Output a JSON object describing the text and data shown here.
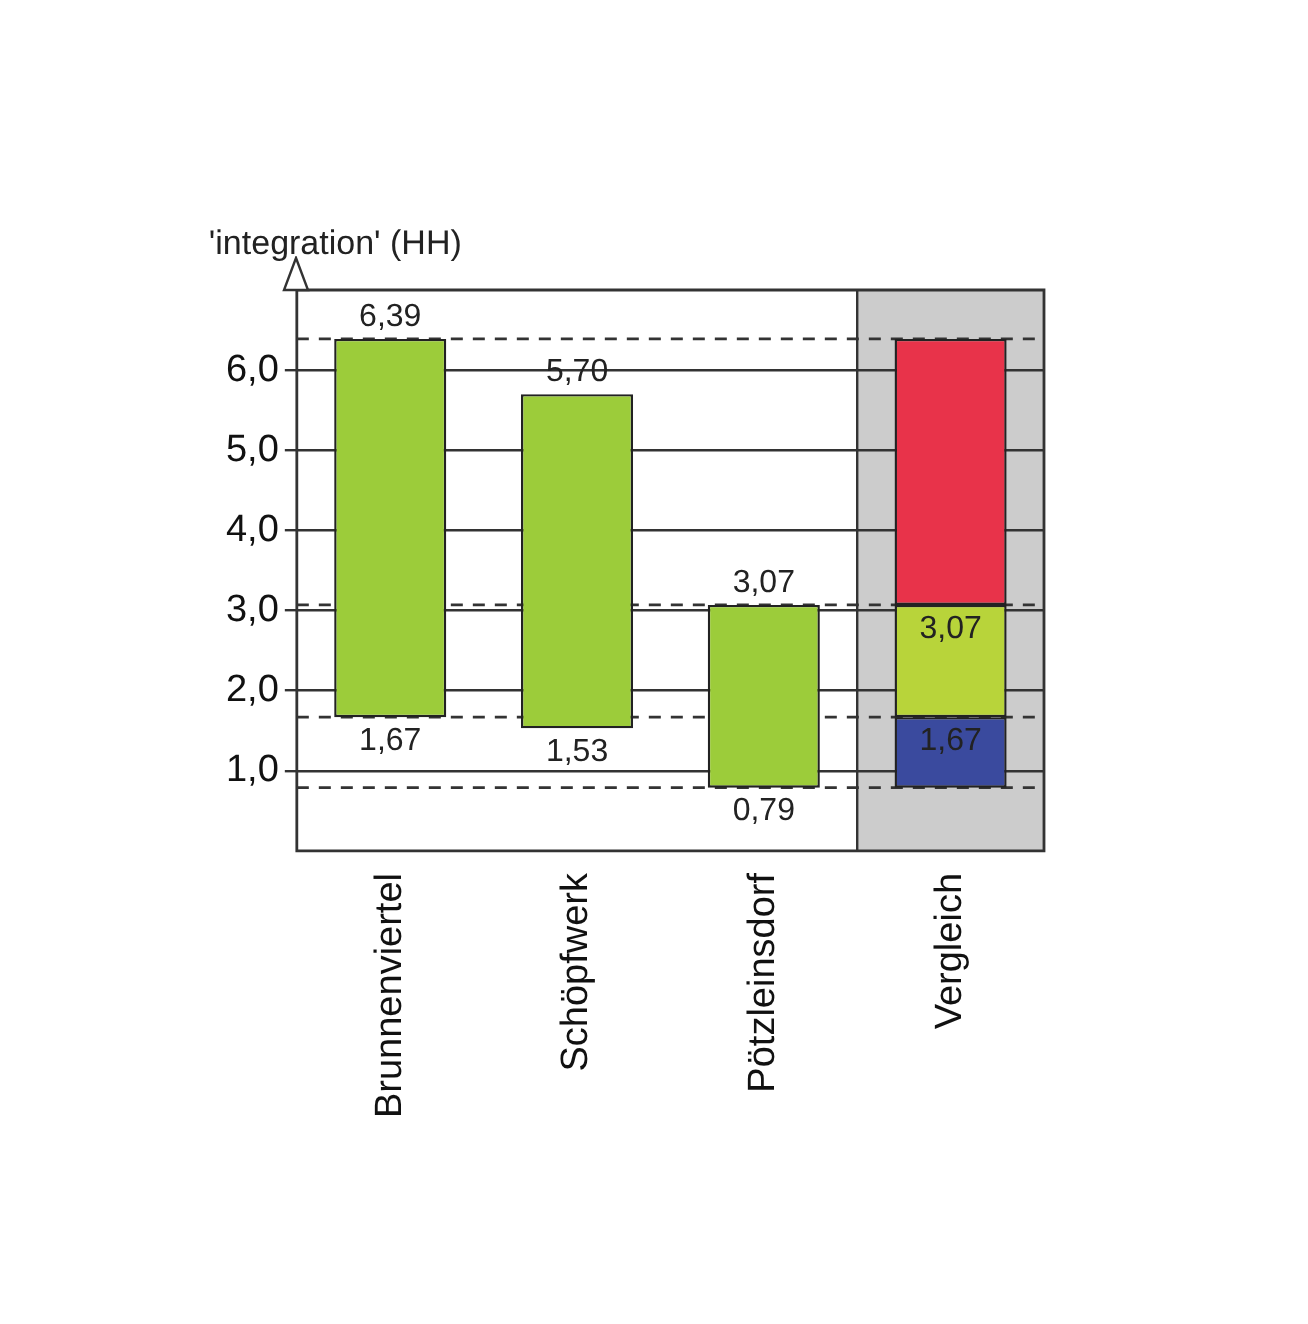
{
  "chart_data": {
    "type": "bar",
    "ylabel": "'integration' (HH)",
    "categories": [
      "Brunnenviertel",
      "Schöpfwerk",
      "Pötzleinsdorf",
      "Vergleich"
    ],
    "series": [
      {
        "color": "#9ccc3a",
        "base": [
          1.67,
          1.53,
          0.79,
          null
        ],
        "values": [
          4.72,
          4.17,
          2.28,
          null
        ]
      },
      {
        "color": "#3a4a9e",
        "base": [
          null,
          null,
          null,
          0.79
        ],
        "values": [
          null,
          null,
          null,
          0.88
        ]
      },
      {
        "color": "#b8d43a",
        "base": [
          null,
          null,
          null,
          1.67
        ],
        "values": [
          null,
          null,
          null,
          1.4
        ]
      },
      {
        "color": "#e8334a",
        "base": [
          null,
          null,
          null,
          3.07
        ],
        "values": [
          null,
          null,
          null,
          3.32
        ]
      }
    ],
    "ylim": [
      0,
      7
    ],
    "yticks": [
      {
        "value": 1,
        "label": "1,0"
      },
      {
        "value": 2,
        "label": "2,0"
      },
      {
        "value": 3,
        "label": "3,0"
      },
      {
        "value": 4,
        "label": "4,0"
      },
      {
        "value": 5,
        "label": "5,0"
      },
      {
        "value": 6,
        "label": "6,0"
      }
    ],
    "grid": "y",
    "legend": false,
    "ref_lines": [
      {
        "axis": "y",
        "value": 6.39,
        "line_style": "dashed"
      },
      {
        "axis": "y",
        "value": 3.07,
        "line_style": "dashed"
      },
      {
        "axis": "y",
        "value": 1.67,
        "line_style": "dashed"
      },
      {
        "axis": "y",
        "value": 0.79,
        "line_style": "dashed"
      }
    ],
    "bands": [
      {
        "axis": "x",
        "from": "Vergleich",
        "to": "Vergleich",
        "color": "#cccccc"
      }
    ],
    "annotations": [
      {
        "text": "6,39",
        "x": "Brunnenviertel",
        "y": 6.39
      },
      {
        "text": "1,67",
        "x": "Brunnenviertel",
        "y": 1.67
      },
      {
        "text": "5,70",
        "x": "Schöpfwerk",
        "y": 5.7
      },
      {
        "text": "1,53",
        "x": "Schöpfwerk",
        "y": 1.53
      },
      {
        "text": "3,07",
        "x": "Pötzleinsdorf",
        "y": 3.07
      },
      {
        "text": "0,79",
        "x": "Pötzleinsdorf",
        "y": 0.79
      },
      {
        "text": "3,07",
        "x": "Vergleich",
        "y": 3.07
      },
      {
        "text": "1,67",
        "x": "Vergleich",
        "y": 1.67
      }
    ]
  }
}
